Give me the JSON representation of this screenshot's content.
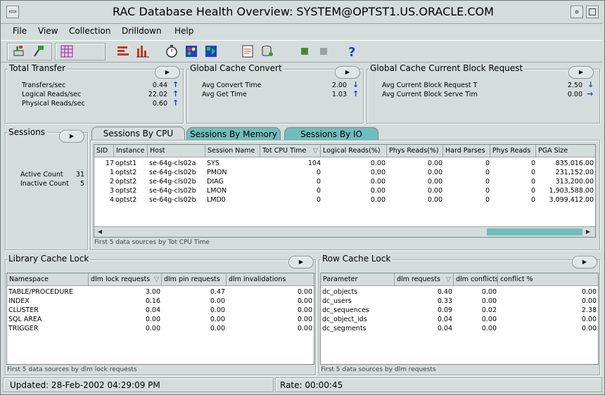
{
  "window": {
    "title": "RAC Database Health Overview: SYSTEM@OPTST1.US.ORACLE.COM"
  },
  "menu": [
    "File",
    "View",
    "Collection",
    "Drilldown",
    "Help"
  ],
  "toolbar_icons": [
    "connect-icon",
    "disconnect-icon",
    "grid-icon",
    "bar-chart-icon",
    "bar-chart-red-icon",
    "stopwatch-icon",
    "traffic-light-icon",
    "play-panel-icon",
    "report-icon",
    "database-icon",
    "record-icon",
    "stop-icon",
    "help-icon"
  ],
  "total_transfer": {
    "title": "Total Transfer",
    "rows": [
      {
        "label": "Transfers/sec",
        "value": "0.44",
        "trend": "up"
      },
      {
        "label": "Logical Reads/sec",
        "value": "22.02",
        "trend": "up"
      },
      {
        "label": "Physical Reads/sec",
        "value": "0.60",
        "trend": "up"
      }
    ]
  },
  "global_cache_convert": {
    "title": "Global Cache Convert",
    "rows": [
      {
        "label": "Avg Convert Time",
        "value": "2.00",
        "trend": "down"
      },
      {
        "label": "Avg Get Time",
        "value": "1.03",
        "trend": "up"
      }
    ]
  },
  "global_cache_current": {
    "title": "Global Cache Current Block Request",
    "rows": [
      {
        "label": "Avg Current Block Request T",
        "value": "2.50",
        "trend": "down"
      },
      {
        "label": "Avg Current Block Serve Tim",
        "value": "0.00",
        "trend": "right"
      }
    ]
  },
  "sessions": {
    "title": "Sessions",
    "active_label": "Active Count",
    "active_value": "31",
    "inactive_label": "Inactive Count",
    "inactive_value": "5"
  },
  "tabs": [
    "Sessions By CPU",
    "Sessions By Memory",
    "Sessions By IO"
  ],
  "sessions_table": {
    "columns": [
      "SID",
      "Instance",
      "Host",
      "Session Name",
      "Tot CPU Time",
      "Logical Reads(%)",
      "Phys Reads(%)",
      "Hard Parses",
      "Phys Reads",
      "PGA Size"
    ],
    "rows": [
      [
        "17",
        "optst1",
        "se-64g-cls02a",
        "SYS",
        "104",
        "0.00",
        "0.00",
        "0",
        "0",
        "835,016.00"
      ],
      [
        "1",
        "optst2",
        "se-64g-cls02b",
        "PMON",
        "0",
        "0.00",
        "0.00",
        "0",
        "0",
        "231,152.00"
      ],
      [
        "2",
        "optst2",
        "se-64g-cls02b",
        "DIAG",
        "0",
        "0.00",
        "0.00",
        "0",
        "0",
        "313,200.00"
      ],
      [
        "3",
        "optst2",
        "se-64g-cls02b",
        "LMON",
        "0",
        "0.00",
        "0.00",
        "0",
        "0",
        "1,903,588.00"
      ],
      [
        "4",
        "optst2",
        "se-64g-cls02b",
        "LMD0",
        "0",
        "0.00",
        "0.00",
        "0",
        "0",
        "3,099,412.00"
      ]
    ],
    "footer": "First 5 data sources by Tot CPU Time"
  },
  "library_cache": {
    "title": "Library Cache Lock",
    "columns": [
      "Namespace",
      "dlm lock requests",
      "dlm pin requests",
      "dlm invalidations"
    ],
    "rows": [
      [
        "TABLE/PROCEDURE",
        "3.00",
        "0.47",
        "0.00"
      ],
      [
        "INDEX",
        "0.16",
        "0.00",
        "0.00"
      ],
      [
        "CLUSTER",
        "0.04",
        "0.00",
        "0.00"
      ],
      [
        "SQL AREA",
        "0.00",
        "0.00",
        "0.00"
      ],
      [
        "TRIGGER",
        "0.00",
        "0.00",
        "0.00"
      ]
    ],
    "footer": "First 5 data sources by dlm lock requests"
  },
  "row_cache": {
    "title": "Row Cache Lock",
    "columns": [
      "Parameter",
      "dlm requests",
      "dlm conflicts",
      "conflict %"
    ],
    "rows": [
      [
        "dc_objects",
        "0.40",
        "0.00",
        "0.00"
      ],
      [
        "dc_users",
        "0.33",
        "0.00",
        "0.00"
      ],
      [
        "dc_sequences",
        "0.09",
        "0.02",
        "2.38"
      ],
      [
        "dc_object_ids",
        "0.04",
        "0.00",
        "0.00"
      ],
      [
        "dc_segments",
        "0.04",
        "0.00",
        "0.00"
      ]
    ],
    "footer": "First 5 data sources by dlm requests"
  },
  "status": {
    "updated": "Updated: 28-Feb-2002 04:29:09 PM",
    "rate": "Rate: 00:00:45"
  },
  "colors": {
    "accent_tab": "#6fbdbd",
    "arrow_blue": "#1a3fd8",
    "background": "#d4dddc"
  }
}
